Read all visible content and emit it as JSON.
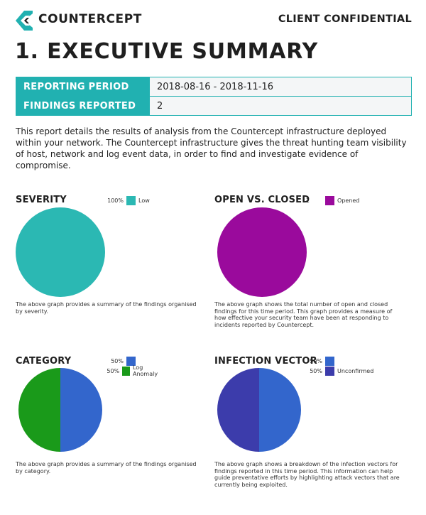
{
  "header": {
    "brand": "COUNTERCEPT",
    "confidential": "CLIENT CONFIDENTIAL",
    "logo_icon": "countercept-chevron-icon",
    "brand_color": "#21b1b1"
  },
  "title": "1. EXECUTIVE SUMMARY",
  "summary_table": [
    {
      "key": "REPORTING PERIOD",
      "value": "2018-08-16 - 2018-11-16"
    },
    {
      "key": "FINDINGS REPORTED",
      "value": "2"
    }
  ],
  "intro": "This report details the results of analysis from the Countercept infrastructure deployed within your network. The Countercept infrastructure gives the threat hunting team visibility of host, network and log event data, in order to find and investigate evidence of compromise.",
  "chart_data": [
    {
      "type": "pie",
      "title": "SEVERITY",
      "legend": [
        {
          "pct": "100%",
          "label": "Low",
          "color": "#2bb8b3"
        }
      ],
      "values": [
        100
      ],
      "caption": "The above graph provides a summary of the findings organised by severity."
    },
    {
      "type": "pie",
      "title": "OPEN VS. CLOSED",
      "legend": [
        {
          "pct": "1",
          "label": "Opened",
          "color": "#9a0a9c"
        }
      ],
      "values": [
        1
      ],
      "caption": "The above graph shows the total number of open and closed findings for this time period. This graph provides a measure of how effective your security team have been at responding to incidents reported by Countercept."
    },
    {
      "type": "pie",
      "title": "CATEGORY",
      "legend": [
        {
          "pct": "50%",
          "label": "",
          "color": "#3366cc"
        },
        {
          "pct": "50%",
          "label": "Log Anomaly",
          "color": "#1a9a1a"
        }
      ],
      "values": [
        50,
        50
      ],
      "caption": "The above graph provides a summary of the findings organised by category."
    },
    {
      "type": "pie",
      "title": "INFECTION VECTOR",
      "legend": [
        {
          "pct": "50%",
          "label": "",
          "color": "#3366cc"
        },
        {
          "pct": "50%",
          "label": "Unconfirmed",
          "color": "#3c3cab"
        }
      ],
      "values": [
        50,
        50
      ],
      "caption": "The above graph shows a breakdown of the infection vectors for findings reported in this time period. This information can help guide preventative efforts by highlighting attack vectors that are currently being exploited."
    }
  ]
}
